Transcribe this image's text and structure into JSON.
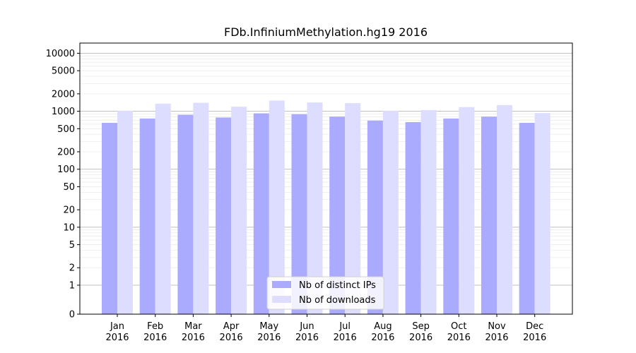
{
  "chart_data": {
    "type": "bar",
    "title": "FDb.InfiniumMethylation.hg19 2016",
    "xlabel": "",
    "ylabel": "",
    "y_scale": "symlog",
    "ylim": [
      0,
      15000
    ],
    "y_ticks": [
      0,
      1,
      2,
      5,
      10,
      20,
      50,
      100,
      200,
      500,
      1000,
      2000,
      5000,
      10000
    ],
    "grid": "horizontal",
    "legend_position": "bottom-center",
    "categories": [
      {
        "month": "Jan",
        "year": "2016"
      },
      {
        "month": "Feb",
        "year": "2016"
      },
      {
        "month": "Mar",
        "year": "2016"
      },
      {
        "month": "Apr",
        "year": "2016"
      },
      {
        "month": "May",
        "year": "2016"
      },
      {
        "month": "Jun",
        "year": "2016"
      },
      {
        "month": "Jul",
        "year": "2016"
      },
      {
        "month": "Aug",
        "year": "2016"
      },
      {
        "month": "Sep",
        "year": "2016"
      },
      {
        "month": "Oct",
        "year": "2016"
      },
      {
        "month": "Nov",
        "year": "2016"
      },
      {
        "month": "Dec",
        "year": "2016"
      }
    ],
    "series": [
      {
        "name": "Nb of distinct IPs",
        "color": "#aaaaff",
        "values": [
          630,
          750,
          870,
          780,
          920,
          890,
          810,
          690,
          650,
          750,
          810,
          630
        ]
      },
      {
        "name": "Nb of downloads",
        "color": "#ddddff",
        "values": [
          1020,
          1350,
          1400,
          1200,
          1530,
          1420,
          1380,
          1020,
          1050,
          1180,
          1280,
          930
        ]
      }
    ]
  }
}
